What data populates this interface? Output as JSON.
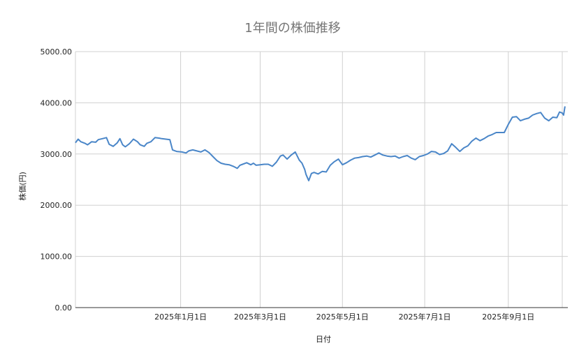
{
  "chart_data": {
    "type": "line",
    "title": "1年間の株価推移",
    "xlabel": "日付",
    "ylabel": "株価(円)",
    "ylim": [
      0,
      5000
    ],
    "y_ticks": [
      "0.00",
      "1000.00",
      "2000.00",
      "3000.00",
      "4000.00",
      "5000.00"
    ],
    "x_range": [
      "2024-10-15",
      "2025-10-11"
    ],
    "x_ticks": [
      {
        "date": "2025-01-01",
        "label": "2025年1月1日"
      },
      {
        "date": "2025-03-01",
        "label": "2025年3月1日"
      },
      {
        "date": "2025-05-01",
        "label": "2025年5月1日"
      },
      {
        "date": "2025-07-01",
        "label": "2025年7月1日"
      },
      {
        "date": "2025-09-01",
        "label": "2025年9月1日"
      }
    ],
    "grid": true,
    "legend": "none",
    "line_color": "#4a86c8",
    "x": [
      "2024-10-15",
      "2024-10-17",
      "2024-10-19",
      "2024-10-22",
      "2024-10-24",
      "2024-10-27",
      "2024-10-30",
      "2024-11-01",
      "2024-11-04",
      "2024-11-07",
      "2024-11-09",
      "2024-11-12",
      "2024-11-15",
      "2024-11-17",
      "2024-11-19",
      "2024-11-21",
      "2024-11-24",
      "2024-11-27",
      "2024-11-30",
      "2024-12-02",
      "2024-12-05",
      "2024-12-07",
      "2024-12-10",
      "2024-12-13",
      "2024-12-16",
      "2024-12-18",
      "2024-12-21",
      "2024-12-24",
      "2024-12-26",
      "2024-12-29",
      "2025-01-02",
      "2025-01-05",
      "2025-01-07",
      "2025-01-10",
      "2025-01-13",
      "2025-01-16",
      "2025-01-19",
      "2025-01-22",
      "2025-01-25",
      "2025-01-28",
      "2025-01-31",
      "2025-02-03",
      "2025-02-06",
      "2025-02-09",
      "2025-02-12",
      "2025-02-14",
      "2025-02-16",
      "2025-02-19",
      "2025-02-22",
      "2025-02-24",
      "2025-02-26",
      "2025-03-01",
      "2025-03-04",
      "2025-03-07",
      "2025-03-10",
      "2025-03-13",
      "2025-03-16",
      "2025-03-18",
      "2025-03-21",
      "2025-03-24",
      "2025-03-27",
      "2025-03-30",
      "2025-04-01",
      "2025-04-03",
      "2025-04-04",
      "2025-04-06",
      "2025-04-08",
      "2025-04-10",
      "2025-04-13",
      "2025-04-16",
      "2025-04-19",
      "2025-04-22",
      "2025-04-25",
      "2025-04-28",
      "2025-05-01",
      "2025-05-04",
      "2025-05-07",
      "2025-05-10",
      "2025-05-13",
      "2025-05-16",
      "2025-05-19",
      "2025-05-22",
      "2025-05-25",
      "2025-05-28",
      "2025-05-31",
      "2025-06-03",
      "2025-06-06",
      "2025-06-09",
      "2025-06-12",
      "2025-06-15",
      "2025-06-18",
      "2025-06-21",
      "2025-06-24",
      "2025-06-27",
      "2025-06-30",
      "2025-07-03",
      "2025-07-06",
      "2025-07-09",
      "2025-07-12",
      "2025-07-15",
      "2025-07-18",
      "2025-07-21",
      "2025-07-24",
      "2025-07-27",
      "2025-07-30",
      "2025-08-02",
      "2025-08-05",
      "2025-08-08",
      "2025-08-11",
      "2025-08-14",
      "2025-08-17",
      "2025-08-20",
      "2025-08-23",
      "2025-08-26",
      "2025-08-29",
      "2025-09-01",
      "2025-09-04",
      "2025-09-07",
      "2025-09-10",
      "2025-09-13",
      "2025-09-16",
      "2025-09-19",
      "2025-09-22",
      "2025-09-25",
      "2025-09-28",
      "2025-10-01",
      "2025-10-04",
      "2025-10-07",
      "2025-10-09",
      "2025-10-11"
    ],
    "values": [
      3220,
      3290,
      3240,
      3210,
      3180,
      3240,
      3230,
      3280,
      3300,
      3320,
      3190,
      3150,
      3220,
      3300,
      3180,
      3140,
      3200,
      3290,
      3240,
      3180,
      3150,
      3210,
      3240,
      3320,
      3310,
      3300,
      3290,
      3280,
      3080,
      3050,
      3040,
      3020,
      3060,
      3080,
      3060,
      3040,
      3080,
      3030,
      2950,
      2870,
      2820,
      2800,
      2790,
      2760,
      2720,
      2780,
      2800,
      2830,
      2790,
      2820,
      2780,
      2790,
      2800,
      2800,
      2760,
      2840,
      2960,
      2980,
      2900,
      2980,
      3040,
      2880,
      2820,
      2700,
      2600,
      2480,
      2620,
      2640,
      2610,
      2660,
      2650,
      2780,
      2850,
      2900,
      2790,
      2830,
      2880,
      2920,
      2930,
      2950,
      2960,
      2940,
      2980,
      3020,
      2980,
      2960,
      2950,
      2960,
      2920,
      2950,
      2970,
      2920,
      2890,
      2950,
      2970,
      3000,
      3050,
      3040,
      2990,
      3010,
      3060,
      3200,
      3130,
      3050,
      3120,
      3160,
      3250,
      3310,
      3260,
      3300,
      3350,
      3380,
      3420,
      3420,
      3420,
      3580,
      3720,
      3730,
      3650,
      3680,
      3700,
      3760,
      3790,
      3810,
      3700,
      3650,
      3720,
      3710,
      3820,
      3800
    ],
    "x_extra_points": [
      {
        "date": "2025-10-12",
        "value": 3760
      },
      {
        "date": "2025-10-13",
        "value": 3930
      }
    ]
  }
}
